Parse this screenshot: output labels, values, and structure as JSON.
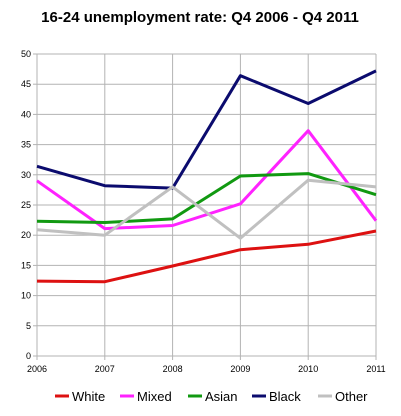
{
  "chart_data": {
    "type": "line",
    "title": "16-24 unemployment rate: Q4 2006 - Q4 2011",
    "xlabel": "",
    "ylabel": "",
    "x": [
      "2006",
      "2007",
      "2008",
      "2009",
      "2010",
      "2011"
    ],
    "ylim": [
      0,
      50
    ],
    "yticks": [
      0,
      5,
      10,
      15,
      20,
      25,
      30,
      35,
      40,
      45,
      50
    ],
    "grid": true,
    "legend_position": "bottom",
    "series": [
      {
        "name": "White",
        "color": "#dd1111",
        "values": [
          12.4,
          12.3,
          14.9,
          17.6,
          18.5,
          20.7
        ]
      },
      {
        "name": "Mixed",
        "color": "#ff22ff",
        "values": [
          29.0,
          21.1,
          21.6,
          25.2,
          37.3,
          22.4
        ]
      },
      {
        "name": "Asian",
        "color": "#119911",
        "values": [
          22.3,
          22.1,
          22.7,
          29.8,
          30.2,
          26.7
        ]
      },
      {
        "name": "Black",
        "color": "#0b0b6e",
        "values": [
          31.4,
          28.2,
          27.8,
          46.4,
          41.8,
          47.2
        ]
      },
      {
        "name": "Other",
        "color": "#c0c0c0",
        "values": [
          20.9,
          20.0,
          28.0,
          19.5,
          29.1,
          28.0
        ]
      }
    ]
  }
}
